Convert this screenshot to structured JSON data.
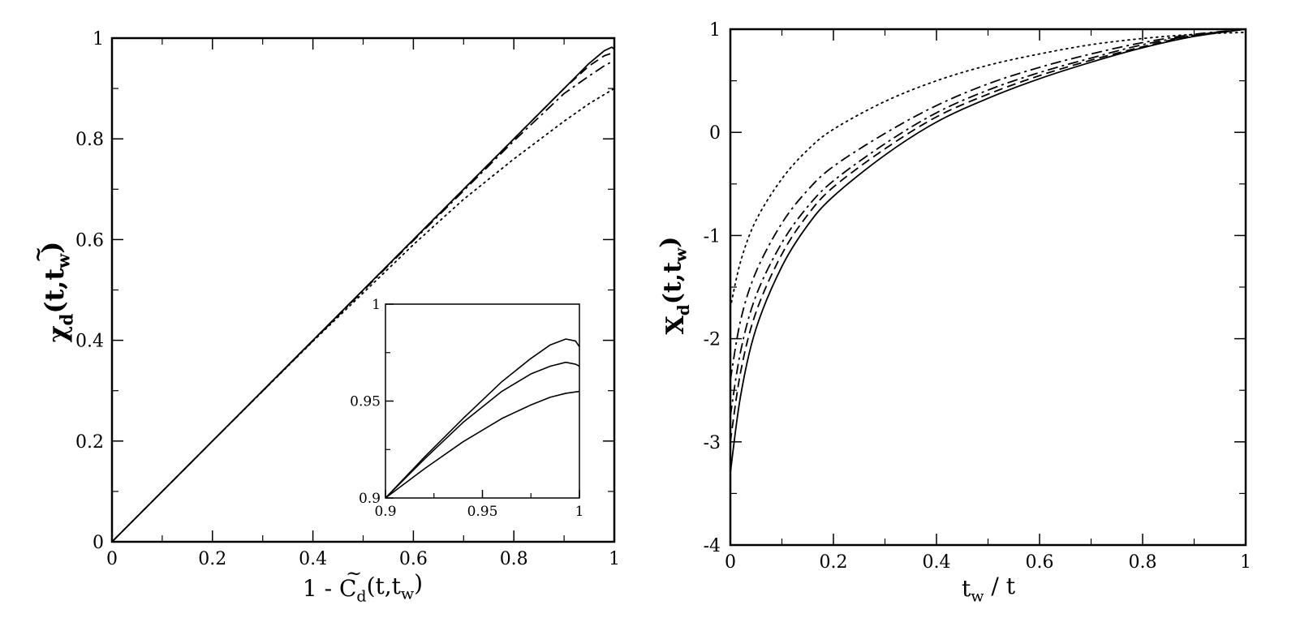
{
  "chart_data": [
    {
      "type": "line",
      "panel": "left",
      "title": "",
      "xlabel": {
        "prefix": "1 - C",
        "accent": "~",
        "sub": "d",
        "suffix": "(t,t",
        "sub2": "w",
        "close": ")"
      },
      "ylabel": {
        "main": "χ",
        "accent": "~",
        "sub": "d",
        "suffix": "(t,t",
        "sub2": "w",
        "close": ")"
      },
      "xlim": [
        0,
        1
      ],
      "ylim": [
        0,
        1
      ],
      "xticks": [
        0,
        0.2,
        0.4,
        0.6,
        0.8,
        1
      ],
      "xtick_labels": [
        "0",
        "0.2",
        "0.4",
        "0.6",
        "0.8",
        "1"
      ],
      "yticks": [
        0,
        0.2,
        0.4,
        0.6,
        0.8,
        1
      ],
      "ytick_labels": [
        "0",
        "0.2",
        "0.4",
        "0.6",
        "0.8",
        "1"
      ],
      "grid": false,
      "series": [
        {
          "style": "solid",
          "x": [
            0,
            0.2,
            0.4,
            0.6,
            0.8,
            0.9,
            0.95,
            0.98,
            0.995,
            1.0
          ],
          "y": [
            0,
            0.2,
            0.4,
            0.6,
            0.8,
            0.9,
            0.95,
            0.975,
            0.982,
            0.978
          ]
        },
        {
          "style": "dashed",
          "x": [
            0,
            0.2,
            0.4,
            0.6,
            0.8,
            0.9,
            0.95,
            0.98,
            0.995,
            1.0
          ],
          "y": [
            0,
            0.2,
            0.4,
            0.6,
            0.8,
            0.9,
            0.945,
            0.965,
            0.97,
            0.968
          ]
        },
        {
          "style": "dashdot",
          "x": [
            0,
            0.2,
            0.4,
            0.6,
            0.8,
            0.9,
            0.95,
            0.98,
            0.995,
            1.0
          ],
          "y": [
            0,
            0.2,
            0.399,
            0.598,
            0.796,
            0.89,
            0.925,
            0.945,
            0.953,
            0.955
          ]
        },
        {
          "style": "dotted",
          "x": [
            0,
            0.2,
            0.4,
            0.6,
            0.7,
            0.8,
            0.9,
            0.95,
            1.0
          ],
          "y": [
            0,
            0.2,
            0.398,
            0.59,
            0.68,
            0.76,
            0.835,
            0.87,
            0.9
          ]
        }
      ],
      "inset": {
        "xlim": [
          0.9,
          1
        ],
        "ylim": [
          0.9,
          1
        ],
        "xtick_labels": [
          "0.9",
          "0.95",
          "1"
        ],
        "ytick_labels": [
          "0.9",
          "0.95",
          "1"
        ],
        "series": [
          {
            "style": "solid",
            "x": [
              0.9,
              0.92,
              0.94,
              0.96,
              0.975,
              0.985,
              0.993,
              0.998,
              1.0
            ],
            "y": [
              0.9,
              0.921,
              0.941,
              0.96,
              0.972,
              0.979,
              0.982,
              0.981,
              0.978
            ]
          },
          {
            "style": "solid",
            "x": [
              0.9,
              0.92,
              0.94,
              0.96,
              0.975,
              0.985,
              0.993,
              0.998,
              1.0
            ],
            "y": [
              0.9,
              0.92,
              0.939,
              0.955,
              0.964,
              0.968,
              0.97,
              0.969,
              0.968
            ]
          },
          {
            "style": "solid",
            "x": [
              0.9,
              0.92,
              0.94,
              0.96,
              0.975,
              0.985,
              0.993,
              1.0
            ],
            "y": [
              0.9,
              0.915,
              0.929,
              0.941,
              0.948,
              0.952,
              0.954,
              0.955
            ]
          }
        ]
      }
    },
    {
      "type": "line",
      "panel": "right",
      "title": "",
      "xlabel": {
        "main": "t",
        "sub": "w",
        "suffix": " / t"
      },
      "ylabel": {
        "main": "X",
        "sub": "d",
        "suffix": "(t,t",
        "sub2": "w",
        "close": ")"
      },
      "xlim": [
        0,
        1
      ],
      "ylim": [
        -4,
        1
      ],
      "xticks": [
        0,
        0.2,
        0.4,
        0.6,
        0.8,
        1
      ],
      "xtick_labels": [
        "0",
        "0.2",
        "0.4",
        "0.6",
        "0.8",
        "1"
      ],
      "yticks": [
        -4,
        -3,
        -2,
        -1,
        0,
        1
      ],
      "ytick_labels": [
        "-4",
        "-3",
        "-2",
        "-1",
        "0",
        "1"
      ],
      "grid": false,
      "series": [
        {
          "style": "solid",
          "x": [
            0,
            0.02,
            0.05,
            0.1,
            0.15,
            0.2,
            0.3,
            0.4,
            0.5,
            0.6,
            0.7,
            0.8,
            0.9,
            1.0
          ],
          "y": [
            -3.3,
            -2.55,
            -1.9,
            -1.3,
            -0.9,
            -0.62,
            -0.22,
            0.1,
            0.33,
            0.52,
            0.68,
            0.82,
            0.93,
            1.0
          ]
        },
        {
          "style": "dashed",
          "x": [
            0,
            0.02,
            0.05,
            0.1,
            0.15,
            0.2,
            0.3,
            0.4,
            0.5,
            0.6,
            0.7,
            0.8,
            0.9,
            1.0
          ],
          "y": [
            -3.0,
            -2.32,
            -1.74,
            -1.18,
            -0.8,
            -0.53,
            -0.16,
            0.15,
            0.37,
            0.55,
            0.7,
            0.83,
            0.94,
            1.0
          ]
        },
        {
          "style": "dashdot",
          "x": [
            0,
            0.02,
            0.05,
            0.1,
            0.15,
            0.2,
            0.3,
            0.4,
            0.5,
            0.6,
            0.7,
            0.8,
            0.9,
            1.0
          ],
          "y": [
            -2.75,
            -2.12,
            -1.58,
            -1.07,
            -0.72,
            -0.47,
            -0.11,
            0.19,
            0.41,
            0.58,
            0.72,
            0.85,
            0.94,
            1.0
          ]
        },
        {
          "style": "dashdot",
          "x": [
            0,
            0.02,
            0.05,
            0.1,
            0.15,
            0.2,
            0.3,
            0.4,
            0.5,
            0.6,
            0.7,
            0.8,
            0.9,
            1.0
          ],
          "y": [
            -2.4,
            -1.82,
            -1.35,
            -0.88,
            -0.56,
            -0.33,
            -0.01,
            0.26,
            0.47,
            0.63,
            0.76,
            0.87,
            0.95,
            1.0
          ]
        },
        {
          "style": "dotted",
          "x": [
            0,
            0.02,
            0.05,
            0.1,
            0.15,
            0.2,
            0.3,
            0.4,
            0.5,
            0.6,
            0.7,
            0.8,
            0.9,
            1.0
          ],
          "y": [
            -1.7,
            -1.25,
            -0.85,
            -0.45,
            -0.17,
            0.03,
            0.3,
            0.5,
            0.65,
            0.76,
            0.85,
            0.91,
            0.95,
            0.97
          ]
        }
      ]
    }
  ]
}
